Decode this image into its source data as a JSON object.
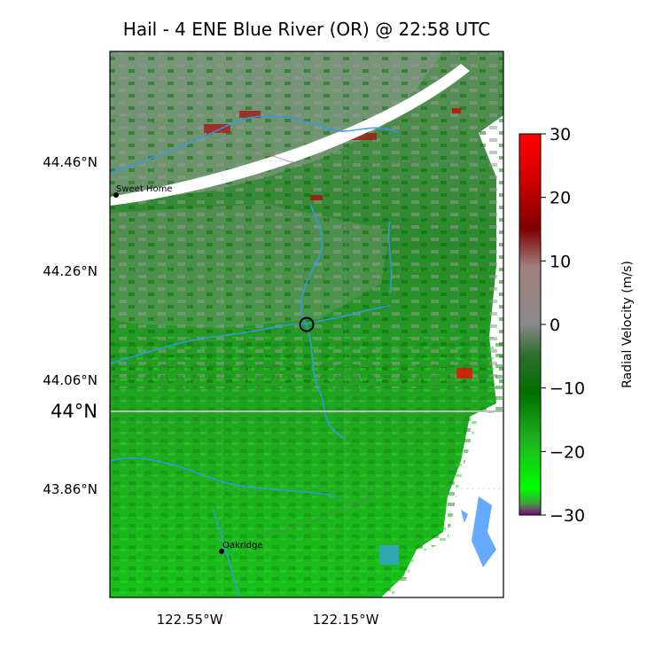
{
  "title": "Hail - 4 ENE Blue River (OR) @ 22:58 UTC",
  "map": {
    "lat_labels": [
      "44.46°N",
      "44.26°N",
      "44.06°N",
      "43.86°N"
    ],
    "lat_highlight_label": "44°N",
    "lon_labels": [
      "122.55°W",
      "122.15°W"
    ],
    "cities": [
      {
        "name": "Sweet Home"
      },
      {
        "name": "Oakridge"
      }
    ],
    "event_marker": "hail-report-circle"
  },
  "colorbar": {
    "label": "Radial Velocity (m/s)",
    "ticks": [
      "30",
      "20",
      "10",
      "0",
      "−10",
      "−20",
      "−30"
    ],
    "min": -30,
    "max": 30,
    "colors": [
      "#ff0000",
      "#c00000",
      "#800000",
      "#9a8a8a",
      "#8a8a8a",
      "#3a7a3a",
      "#007000",
      "#1fa01f",
      "#22dd22",
      "#00ff00",
      "#800080"
    ]
  },
  "colors": {
    "radar_green": "#16b016",
    "radar_dark_green": "#0a7a0a",
    "radar_gray": "#8a9a8a",
    "water": "#3399ee",
    "roads": "#777777"
  }
}
